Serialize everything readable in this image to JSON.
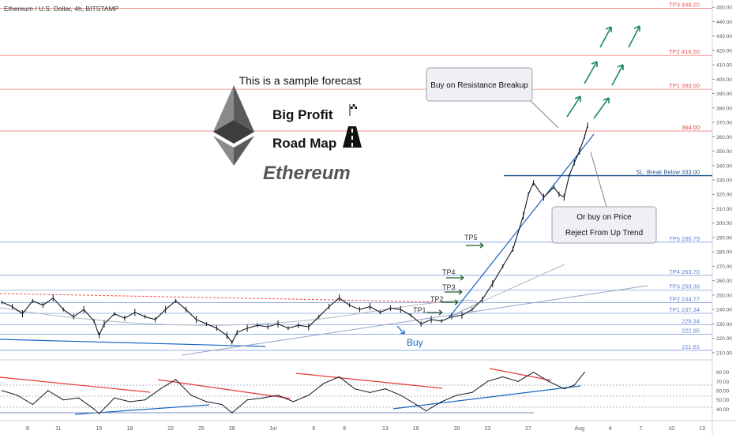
{
  "header": {
    "symbol_label": "Ethereum / U.S. Dollar, 4h, BITSTAMP"
  },
  "branding": {
    "tagline": "This is a sample forecast",
    "line1": "Big Profit",
    "line2": "Road Map",
    "coin_name": "Ethereum",
    "logo_icon": "ethereum-diamond-icon",
    "road_icon": "road-finish-flag-icon"
  },
  "chart_data": {
    "type": "line",
    "ylim": [
      205,
      455
    ],
    "y_ticks": [
      "450.00",
      "440.00",
      "430.00",
      "420.00",
      "410.00",
      "400.00",
      "390.00",
      "380.00",
      "370.00",
      "360.00",
      "350.00",
      "340.00",
      "330.00",
      "320.00",
      "310.00",
      "300.00",
      "290.00",
      "280.00",
      "270.00",
      "260.00",
      "250.00",
      "240.00",
      "230.00",
      "220.00",
      "210.00"
    ],
    "x_ticks": [
      "8",
      "11",
      "15",
      "18",
      "22",
      "25",
      "28",
      "Jul",
      "6",
      "9",
      "13",
      "16",
      "20",
      "23",
      "27",
      "Aug",
      "4",
      "7",
      "10",
      "13"
    ],
    "x_tick_days": [
      8,
      11,
      15,
      18,
      22,
      25,
      28,
      32,
      36,
      39,
      43,
      46,
      50,
      53,
      57,
      62,
      65,
      68,
      71,
      74
    ],
    "x_start_day": 5.3,
    "x_end_day": 75,
    "levels": [
      {
        "label": "TP3 449.20",
        "value": 449.2,
        "color": "#ef5350"
      },
      {
        "label": "TP2 416.50",
        "value": 416.5,
        "color": "#ef5350"
      },
      {
        "label": "TP1 393.00",
        "value": 393.0,
        "color": "#ef5350"
      },
      {
        "label": "364.00",
        "value": 364.0,
        "color": "#e53935"
      },
      {
        "label": "SL: Break Below 333.00",
        "value": 333.0,
        "color": "#1e4e8c"
      },
      {
        "label": "TP5 286.79",
        "value": 286.79,
        "color": "#5b7fd6"
      },
      {
        "label": "TP4 263.70",
        "value": 263.7,
        "color": "#5b7fd6"
      },
      {
        "label": "TP3 253.39",
        "value": 253.39,
        "color": "#5b7fd6"
      },
      {
        "label": "TP2 244.77",
        "value": 244.77,
        "color": "#5b7fd6"
      },
      {
        "label": "TP1 237.34",
        "value": 237.34,
        "color": "#5b7fd6"
      },
      {
        "label": "229.34",
        "value": 229.34,
        "color": "#5b7fd6"
      },
      {
        "label": "222.85",
        "value": 222.85,
        "color": "#5b7fd6"
      },
      {
        "label": "211.61",
        "value": 211.61,
        "color": "#5b7fd6"
      }
    ],
    "price_series": [
      {
        "day": 5.5,
        "price": 245
      },
      {
        "day": 6.5,
        "price": 242
      },
      {
        "day": 7.5,
        "price": 237
      },
      {
        "day": 8.5,
        "price": 246
      },
      {
        "day": 9.5,
        "price": 243
      },
      {
        "day": 10.5,
        "price": 248
      },
      {
        "day": 11.5,
        "price": 240
      },
      {
        "day": 12.5,
        "price": 235
      },
      {
        "day": 13.5,
        "price": 240
      },
      {
        "day": 14.5,
        "price": 232
      },
      {
        "day": 15,
        "price": 222
      },
      {
        "day": 15.5,
        "price": 230
      },
      {
        "day": 16.5,
        "price": 237
      },
      {
        "day": 17.5,
        "price": 234
      },
      {
        "day": 18.5,
        "price": 238
      },
      {
        "day": 19.5,
        "price": 235
      },
      {
        "day": 20.5,
        "price": 233
      },
      {
        "day": 21.5,
        "price": 240
      },
      {
        "day": 22.5,
        "price": 246
      },
      {
        "day": 23.5,
        "price": 240
      },
      {
        "day": 24.5,
        "price": 233
      },
      {
        "day": 25.5,
        "price": 230
      },
      {
        "day": 26.5,
        "price": 227
      },
      {
        "day": 27.5,
        "price": 222
      },
      {
        "day": 28,
        "price": 217
      },
      {
        "day": 28.5,
        "price": 224
      },
      {
        "day": 29.5,
        "price": 227
      },
      {
        "day": 30.5,
        "price": 229
      },
      {
        "day": 31.5,
        "price": 228
      },
      {
        "day": 32.5,
        "price": 230
      },
      {
        "day": 33.5,
        "price": 227
      },
      {
        "day": 34.5,
        "price": 229
      },
      {
        "day": 35.5,
        "price": 228
      },
      {
        "day": 36.5,
        "price": 235
      },
      {
        "day": 37.5,
        "price": 242
      },
      {
        "day": 38.5,
        "price": 248
      },
      {
        "day": 39.5,
        "price": 243
      },
      {
        "day": 40.5,
        "price": 240
      },
      {
        "day": 41.5,
        "price": 242
      },
      {
        "day": 42.5,
        "price": 238
      },
      {
        "day": 43.5,
        "price": 241
      },
      {
        "day": 44.5,
        "price": 240
      },
      {
        "day": 45.5,
        "price": 236
      },
      {
        "day": 46.5,
        "price": 230
      },
      {
        "day": 47.5,
        "price": 233
      },
      {
        "day": 48.5,
        "price": 232
      },
      {
        "day": 49.5,
        "price": 235
      },
      {
        "day": 50.5,
        "price": 236
      },
      {
        "day": 51.5,
        "price": 240
      },
      {
        "day": 52.5,
        "price": 247
      },
      {
        "day": 53.5,
        "price": 258
      },
      {
        "day": 54.5,
        "price": 270
      },
      {
        "day": 55.5,
        "price": 282
      },
      {
        "day": 56.5,
        "price": 305
      },
      {
        "day": 57,
        "price": 320
      },
      {
        "day": 57.5,
        "price": 328
      },
      {
        "day": 58.5,
        "price": 318
      },
      {
        "day": 59.5,
        "price": 325
      },
      {
        "day": 60,
        "price": 320
      },
      {
        "day": 60.5,
        "price": 318
      },
      {
        "day": 61,
        "price": 333
      },
      {
        "day": 61.5,
        "price": 342
      },
      {
        "day": 62,
        "price": 350
      },
      {
        "day": 62.5,
        "price": 360
      },
      {
        "day": 62.8,
        "price": 368
      }
    ],
    "annotations": [
      {
        "text": "Buy on Resistance Breakup"
      },
      {
        "text": "Or buy on Price"
      },
      {
        "text": "Reject  From Up Trend"
      },
      {
        "text": "Buy"
      },
      {
        "text": "TP1"
      },
      {
        "text": "TP2"
      },
      {
        "text": "TP3"
      },
      {
        "text": "TP4"
      },
      {
        "text": "TP5"
      }
    ],
    "oscillator": {
      "ylim": [
        30,
        90
      ],
      "y_ticks": [
        "80.00",
        "70.00",
        "60.00",
        "50.00",
        "40.00"
      ],
      "series": [
        {
          "day": 5.5,
          "value": 60
        },
        {
          "day": 7,
          "value": 55
        },
        {
          "day": 8.5,
          "value": 45
        },
        {
          "day": 10,
          "value": 60
        },
        {
          "day": 11.5,
          "value": 50
        },
        {
          "day": 13,
          "value": 52
        },
        {
          "day": 14.5,
          "value": 40
        },
        {
          "day": 15,
          "value": 35
        },
        {
          "day": 16.5,
          "value": 52
        },
        {
          "day": 18,
          "value": 48
        },
        {
          "day": 19.5,
          "value": 50
        },
        {
          "day": 21,
          "value": 62
        },
        {
          "day": 22.5,
          "value": 72
        },
        {
          "day": 24,
          "value": 55
        },
        {
          "day": 25.5,
          "value": 48
        },
        {
          "day": 27,
          "value": 45
        },
        {
          "day": 28,
          "value": 36
        },
        {
          "day": 29.5,
          "value": 50
        },
        {
          "day": 31,
          "value": 52
        },
        {
          "day": 32.5,
          "value": 55
        },
        {
          "day": 34,
          "value": 48
        },
        {
          "day": 35.5,
          "value": 55
        },
        {
          "day": 37,
          "value": 68
        },
        {
          "day": 38.5,
          "value": 75
        },
        {
          "day": 40,
          "value": 62
        },
        {
          "day": 41.5,
          "value": 58
        },
        {
          "day": 43,
          "value": 62
        },
        {
          "day": 44.5,
          "value": 55
        },
        {
          "day": 46,
          "value": 45
        },
        {
          "day": 47,
          "value": 38
        },
        {
          "day": 48.5,
          "value": 48
        },
        {
          "day": 50,
          "value": 55
        },
        {
          "day": 51.5,
          "value": 58
        },
        {
          "day": 53,
          "value": 70
        },
        {
          "day": 54.5,
          "value": 75
        },
        {
          "day": 56,
          "value": 70
        },
        {
          "day": 57.5,
          "value": 80
        },
        {
          "day": 59,
          "value": 70
        },
        {
          "day": 60.5,
          "value": 62
        },
        {
          "day": 61.5,
          "value": 66
        },
        {
          "day": 62.5,
          "value": 80
        }
      ]
    }
  },
  "colors": {
    "price": "#131722",
    "blue_line": "#1565c0",
    "red_line": "#e53935",
    "green_arrow": "#1b8a5a",
    "axis_text": "#555555"
  }
}
